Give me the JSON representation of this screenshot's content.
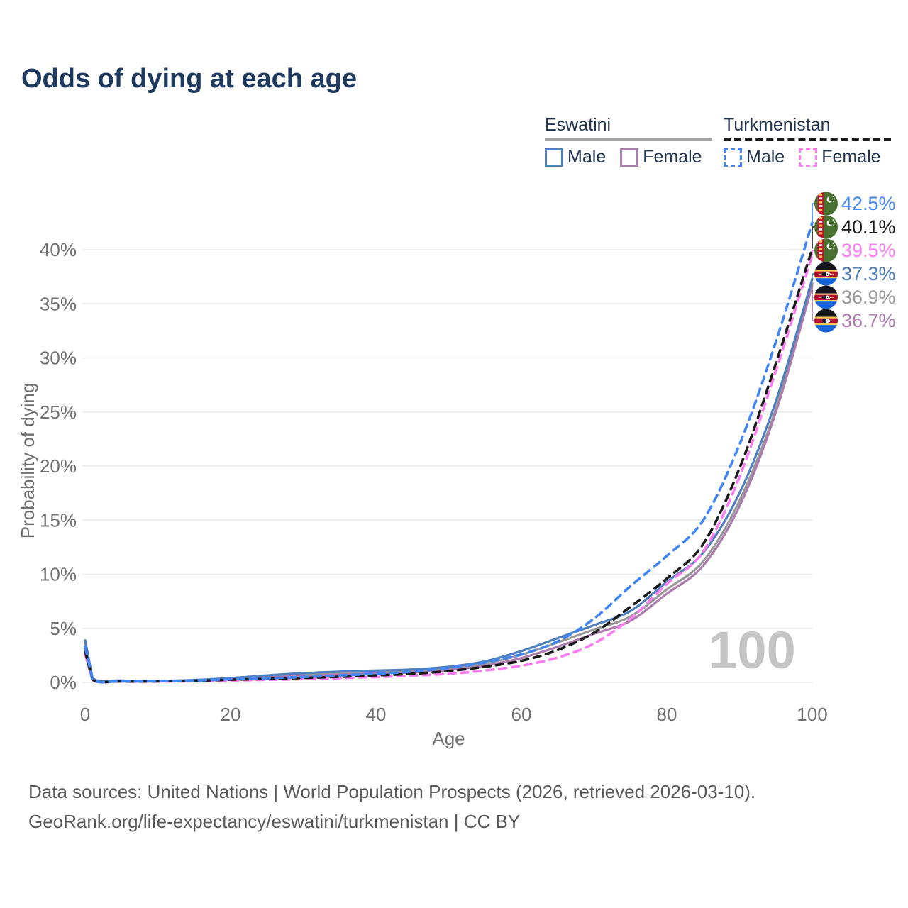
{
  "title": "Odds of dying at each age",
  "legend": {
    "eswatini_title": "Eswatini",
    "turkmenistan_title": "Turkmenistan",
    "es_male_label": "Male",
    "es_female_label": "Female",
    "tm_male_label": "Male",
    "tm_female_label": "Female"
  },
  "watermark": "100",
  "footer_line1": "Data sources: United Nations | World Population Prospects (2026, retrieved 2026-03-10).",
  "footer_line2": "GeoRank.org/life-expectancy/eswatini/turkmenistan | CC BY",
  "colors": {
    "eswatini_male": "#4f80bd",
    "eswatini_female": "#ad7cae",
    "eswatini_both": "#9a9a9a",
    "turkmenistan_male": "#4286f5",
    "turkmenistan_female": "#fa7cf0",
    "turkmenistan_both": "#1a1a1a",
    "title_text": "#1e3a5f",
    "axis_text": "#707070",
    "gridline": "#e9e9e9",
    "watermark": "#c5c5c5",
    "footer_text": "#595959"
  },
  "chart_data": {
    "type": "line",
    "title": "Odds of dying at each age",
    "xlabel": "Age",
    "ylabel": "Probability of dying",
    "xlim": [
      0,
      100
    ],
    "ylim": [
      0,
      44
    ],
    "grid": "horizontal-only",
    "x_ticks": [
      0,
      20,
      40,
      60,
      80,
      100
    ],
    "x_tick_labels": [
      "0",
      "20",
      "40",
      "60",
      "80",
      "100"
    ],
    "y_ticks": [
      0,
      5,
      10,
      15,
      20,
      25,
      30,
      35,
      40
    ],
    "y_tick_labels": [
      "0%",
      "5%",
      "10%",
      "15%",
      "20%",
      "25%",
      "30%",
      "35%",
      "40%"
    ],
    "ages": [
      0,
      1,
      5,
      10,
      15,
      20,
      25,
      30,
      35,
      40,
      45,
      50,
      55,
      60,
      65,
      70,
      75,
      80,
      85,
      90,
      95,
      100
    ],
    "series": [
      {
        "name": "Eswatini Both sexes",
        "key": "eswatini_both",
        "color": "#9a9a9a",
        "dash": false,
        "flag": "sz",
        "values": [
          3.6,
          0.42,
          0.16,
          0.14,
          0.2,
          0.35,
          0.55,
          0.72,
          0.85,
          0.95,
          1.05,
          1.3,
          1.75,
          2.55,
          3.7,
          4.9,
          6.1,
          8.6,
          11.2,
          16.8,
          25.3,
          36.9
        ],
        "end_label": "36.9%"
      },
      {
        "name": "Eswatini Female",
        "key": "eswatini_female",
        "color": "#ad7cae",
        "dash": false,
        "flag": "sz",
        "values": [
          3.3,
          0.4,
          0.15,
          0.13,
          0.18,
          0.3,
          0.45,
          0.6,
          0.72,
          0.82,
          0.92,
          1.15,
          1.55,
          2.25,
          3.3,
          4.5,
          5.7,
          8.2,
          10.8,
          16.3,
          25.0,
          36.7
        ],
        "end_label": "36.7%"
      },
      {
        "name": "Eswatini Male",
        "key": "eswatini_male",
        "color": "#4f80bd",
        "dash": false,
        "flag": "sz",
        "values": [
          3.9,
          0.45,
          0.18,
          0.15,
          0.22,
          0.4,
          0.65,
          0.85,
          1.0,
          1.1,
          1.2,
          1.45,
          1.95,
          2.9,
          4.1,
          5.3,
          6.6,
          9.3,
          12.0,
          17.5,
          26.0,
          37.3
        ],
        "end_label": "37.3%"
      },
      {
        "name": "Turkmenistan Female",
        "key": "turkmenistan_female",
        "color": "#fa7cf0",
        "dash": true,
        "flag": "tm",
        "values": [
          2.6,
          0.25,
          0.09,
          0.09,
          0.12,
          0.18,
          0.24,
          0.3,
          0.4,
          0.5,
          0.62,
          0.8,
          1.1,
          1.55,
          2.3,
          3.6,
          5.9,
          9.1,
          12.1,
          19.0,
          28.8,
          39.5
        ],
        "end_label": "39.5%"
      },
      {
        "name": "Turkmenistan Both sexes",
        "key": "turkmenistan_both",
        "color": "#1a1a1a",
        "dash": true,
        "flag": "tm",
        "values": [
          2.9,
          0.28,
          0.1,
          0.1,
          0.15,
          0.25,
          0.33,
          0.42,
          0.52,
          0.65,
          0.8,
          1.05,
          1.45,
          2.0,
          3.0,
          4.6,
          7.0,
          9.6,
          12.8,
          19.8,
          29.5,
          40.1
        ],
        "end_label": "40.1%"
      },
      {
        "name": "Turkmenistan Male",
        "key": "turkmenistan_male",
        "color": "#4286f5",
        "dash": true,
        "flag": "tm",
        "values": [
          3.3,
          0.3,
          0.12,
          0.12,
          0.18,
          0.3,
          0.4,
          0.5,
          0.65,
          0.8,
          1.0,
          1.35,
          1.85,
          2.6,
          3.8,
          5.9,
          8.9,
          11.7,
          15.0,
          22.0,
          31.5,
          42.5
        ],
        "end_label": "42.5%"
      }
    ],
    "end_labels_order": [
      {
        "key": "turkmenistan_male",
        "label": "42.5%",
        "value": 42.5,
        "flag": "tm",
        "color": "#4286f5"
      },
      {
        "key": "turkmenistan_both",
        "label": "40.1%",
        "value": 40.1,
        "flag": "tm",
        "color": "#1a1a1a"
      },
      {
        "key": "turkmenistan_female",
        "label": "39.5%",
        "value": 39.5,
        "flag": "tm",
        "color": "#fa7cf0"
      },
      {
        "key": "eswatini_male",
        "label": "37.3%",
        "value": 37.3,
        "flag": "sz",
        "color": "#4f80bd"
      },
      {
        "key": "eswatini_both",
        "label": "36.9%",
        "value": 36.9,
        "flag": "sz",
        "color": "#9a9a9a"
      },
      {
        "key": "eswatini_female",
        "label": "36.7%",
        "value": 36.7,
        "flag": "sz",
        "color": "#ad7cae"
      }
    ]
  }
}
